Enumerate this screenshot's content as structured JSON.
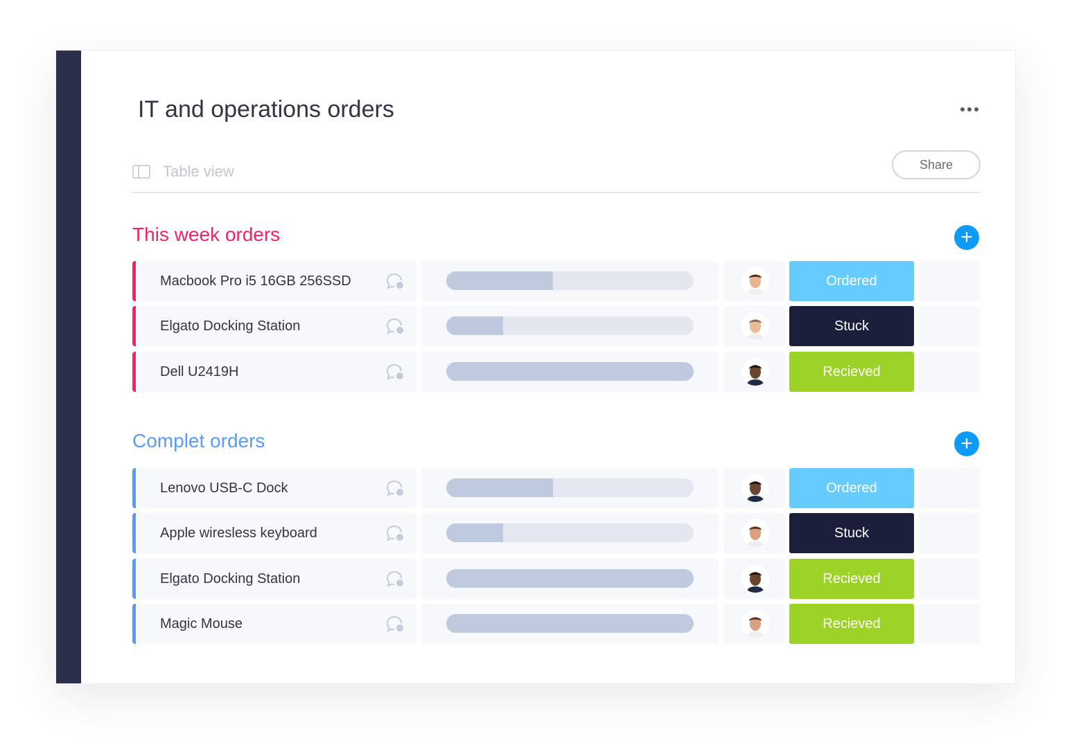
{
  "header": {
    "title": "IT and operations orders",
    "view_label": "Table view",
    "share_label": "Share"
  },
  "colors": {
    "sidebar": "#2b2f4a",
    "ordered": "#66ccff",
    "stuck": "#1c1f3b",
    "received": "#9cd326",
    "group1": "#f5216b",
    "group2": "#579bfc",
    "progress_fill": "#c0cade"
  },
  "groups": [
    {
      "title": "This week orders",
      "color": "#f5216b",
      "rows": [
        {
          "name": "Macbook Pro i5 16GB 256SSD",
          "progress": 0.43,
          "status": "Ordered",
          "status_color": "#66ccff",
          "avatar": "person-1"
        },
        {
          "name": "Elgato Docking Station",
          "progress": 0.23,
          "status": "Stuck",
          "status_color": "#1c1f3b",
          "avatar": "person-2"
        },
        {
          "name": "Dell U2419H",
          "progress": 1.0,
          "status": "Recieved",
          "status_color": "#9cd326",
          "avatar": "person-3"
        }
      ]
    },
    {
      "title": "Complet orders",
      "color": "#579bfc",
      "rows": [
        {
          "name": "Lenovo USB-C Dock",
          "progress": 0.43,
          "status": "Ordered",
          "status_color": "#66ccff",
          "avatar": "person-3"
        },
        {
          "name": "Apple wiresless keyboard",
          "progress": 0.23,
          "status": "Stuck",
          "status_color": "#1c1f3b",
          "avatar": "person-4"
        },
        {
          "name": "Elgato Docking Station",
          "progress": 1.0,
          "status": "Recieved",
          "status_color": "#9cd326",
          "avatar": "person-3"
        },
        {
          "name": "Magic Mouse",
          "progress": 1.0,
          "status": "Recieved",
          "status_color": "#9cd326",
          "avatar": "person-4"
        }
      ]
    }
  ]
}
